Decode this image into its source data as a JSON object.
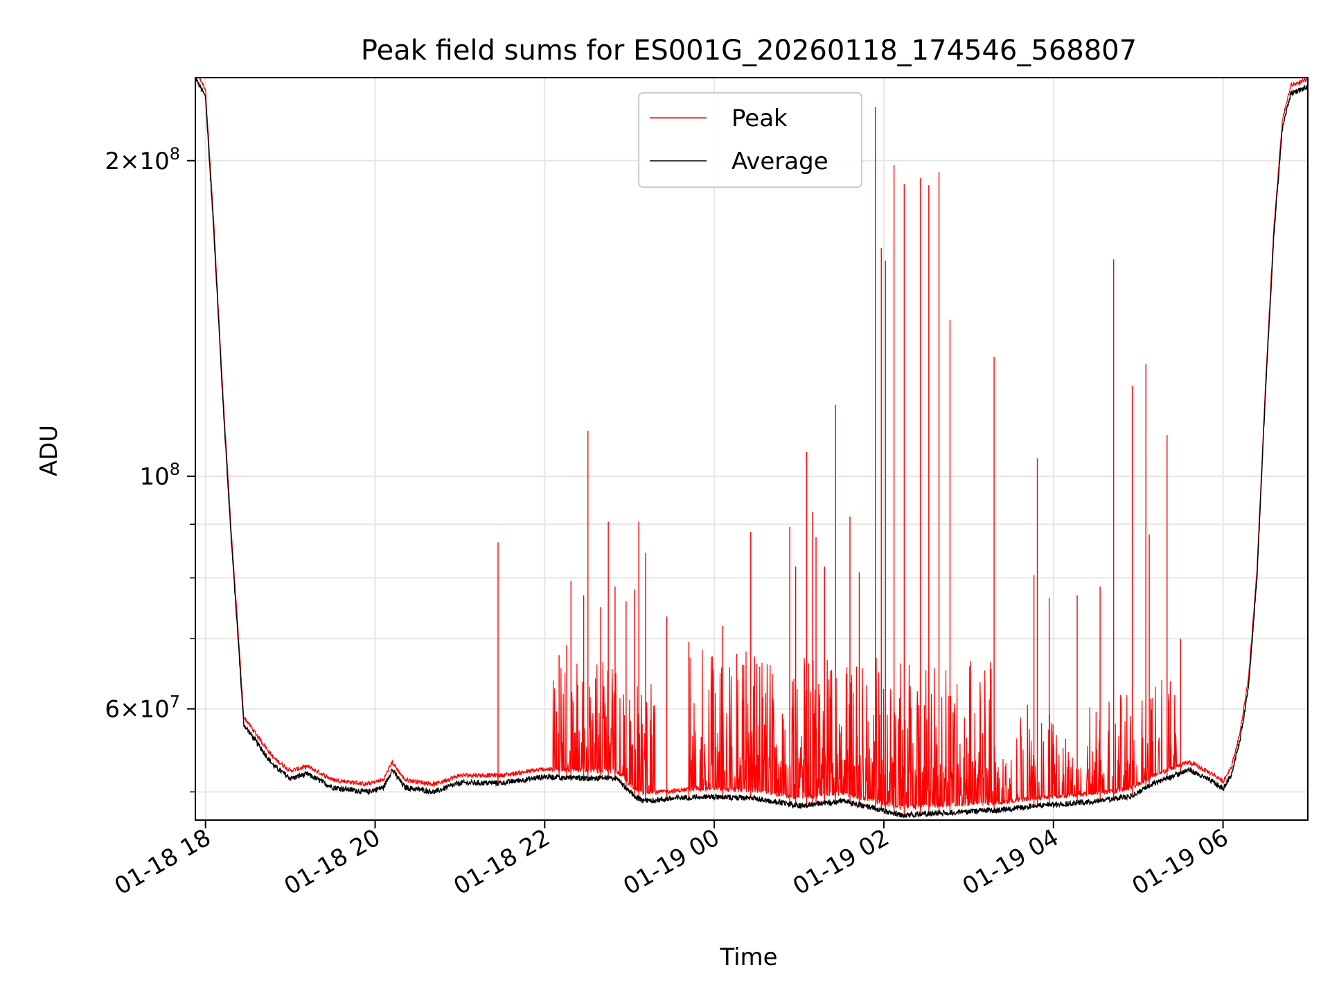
{
  "chart_data": {
    "type": "line",
    "title": "Peak field sums for ES001G_20260118_174546_568807",
    "xlabel": "Time",
    "ylabel": "ADU",
    "yscale": "log",
    "ylim": [
      47000000,
      240000000
    ],
    "xlim_hours": [
      -0.12,
      13.0
    ],
    "grid": true,
    "legend_location": "upper center",
    "x_ticks": [
      {
        "label": "01-18 18",
        "hour": 0
      },
      {
        "label": "01-18 20",
        "hour": 2
      },
      {
        "label": "01-18 22",
        "hour": 4
      },
      {
        "label": "01-19 00",
        "hour": 6
      },
      {
        "label": "01-19 02",
        "hour": 8
      },
      {
        "label": "01-19 04",
        "hour": 10
      },
      {
        "label": "01-19 06",
        "hour": 12
      }
    ],
    "y_major_ticks": [
      {
        "base": "2",
        "exp": "8",
        "value": 200000000,
        "style": "mantissa"
      },
      {
        "base": "10",
        "exp": "8",
        "value": 100000000,
        "style": "power"
      },
      {
        "base": "6",
        "exp": "7",
        "value": 60000000,
        "style": "mantissa"
      }
    ],
    "y_minor_gridlines": [
      50000000,
      70000000,
      80000000,
      90000000
    ],
    "series": [
      {
        "name": "Peak",
        "color": "#ff0000",
        "spikes": [
          [
            3.45,
            86500000
          ],
          [
            4.17,
            67500000
          ],
          [
            4.26,
            69000000
          ],
          [
            4.31,
            79500000
          ],
          [
            4.46,
            77000000
          ],
          [
            4.51,
            110500000
          ],
          [
            4.66,
            75000000
          ],
          [
            4.75,
            90500000
          ],
          [
            4.83,
            78500000
          ],
          [
            4.96,
            76000000
          ],
          [
            5.06,
            78000000
          ],
          [
            5.11,
            90500000
          ],
          [
            5.19,
            84500000
          ],
          [
            5.44,
            73500000
          ],
          [
            5.7,
            69500000
          ],
          [
            6.1,
            72000000
          ],
          [
            6.43,
            88500000
          ],
          [
            6.89,
            89500000
          ],
          [
            6.96,
            82000000
          ],
          [
            7.09,
            105500000
          ],
          [
            7.16,
            92500000
          ],
          [
            7.2,
            87500000
          ],
          [
            7.3,
            82000000
          ],
          [
            7.43,
            117000000
          ],
          [
            7.6,
            91500000
          ],
          [
            7.71,
            81000000
          ],
          [
            7.9,
            225000000
          ],
          [
            7.97,
            165000000
          ],
          [
            8.02,
            160500000
          ],
          [
            8.12,
            198000000
          ],
          [
            8.24,
            190000000
          ],
          [
            8.43,
            192500000
          ],
          [
            8.53,
            189500000
          ],
          [
            8.65,
            195000000
          ],
          [
            8.78,
            141000000
          ],
          [
            9.3,
            130000000
          ],
          [
            9.77,
            80500000
          ],
          [
            9.81,
            104000000
          ],
          [
            9.95,
            76500000
          ],
          [
            10.28,
            77000000
          ],
          [
            10.55,
            78500000
          ],
          [
            10.71,
            161000000
          ],
          [
            10.93,
            122000000
          ],
          [
            11.09,
            128000000
          ],
          [
            11.13,
            88000000
          ],
          [
            11.34,
            109500000
          ],
          [
            11.5,
            70000000
          ]
        ]
      },
      {
        "name": "Average",
        "color": "#000000",
        "profile": [
          [
            -0.12,
            240000000
          ],
          [
            0.0,
            230000000
          ],
          [
            0.1,
            170000000
          ],
          [
            0.2,
            120000000
          ],
          [
            0.3,
            88000000
          ],
          [
            0.4,
            67000000
          ],
          [
            0.45,
            58000000
          ],
          [
            0.55,
            56500000
          ],
          [
            0.8,
            53000000
          ],
          [
            1.0,
            51500000
          ],
          [
            1.2,
            52000000
          ],
          [
            1.5,
            50500000
          ],
          [
            1.9,
            50000000
          ],
          [
            2.1,
            50500000
          ],
          [
            2.2,
            52500000
          ],
          [
            2.35,
            50500000
          ],
          [
            2.7,
            50000000
          ],
          [
            3.0,
            51000000
          ],
          [
            3.5,
            51000000
          ],
          [
            4.0,
            51700000
          ],
          [
            4.5,
            51500000
          ],
          [
            4.85,
            51500000
          ],
          [
            5.0,
            50000000
          ],
          [
            5.15,
            49000000
          ],
          [
            5.8,
            49500000
          ],
          [
            6.5,
            49300000
          ],
          [
            7.0,
            48500000
          ],
          [
            7.5,
            49000000
          ],
          [
            7.9,
            48200000
          ],
          [
            8.2,
            47500000
          ],
          [
            8.8,
            47800000
          ],
          [
            9.3,
            48000000
          ],
          [
            9.8,
            48500000
          ],
          [
            10.5,
            49000000
          ],
          [
            10.9,
            49500000
          ],
          [
            11.2,
            51000000
          ],
          [
            11.6,
            52500000
          ],
          [
            11.9,
            51000000
          ],
          [
            12.0,
            50300000
          ],
          [
            12.1,
            52000000
          ],
          [
            12.2,
            56000000
          ],
          [
            12.3,
            63000000
          ],
          [
            12.4,
            80000000
          ],
          [
            12.5,
            120000000
          ],
          [
            12.6,
            170000000
          ],
          [
            12.7,
            215000000
          ],
          [
            12.8,
            232000000
          ],
          [
            13.0,
            235000000
          ]
        ]
      }
    ]
  }
}
